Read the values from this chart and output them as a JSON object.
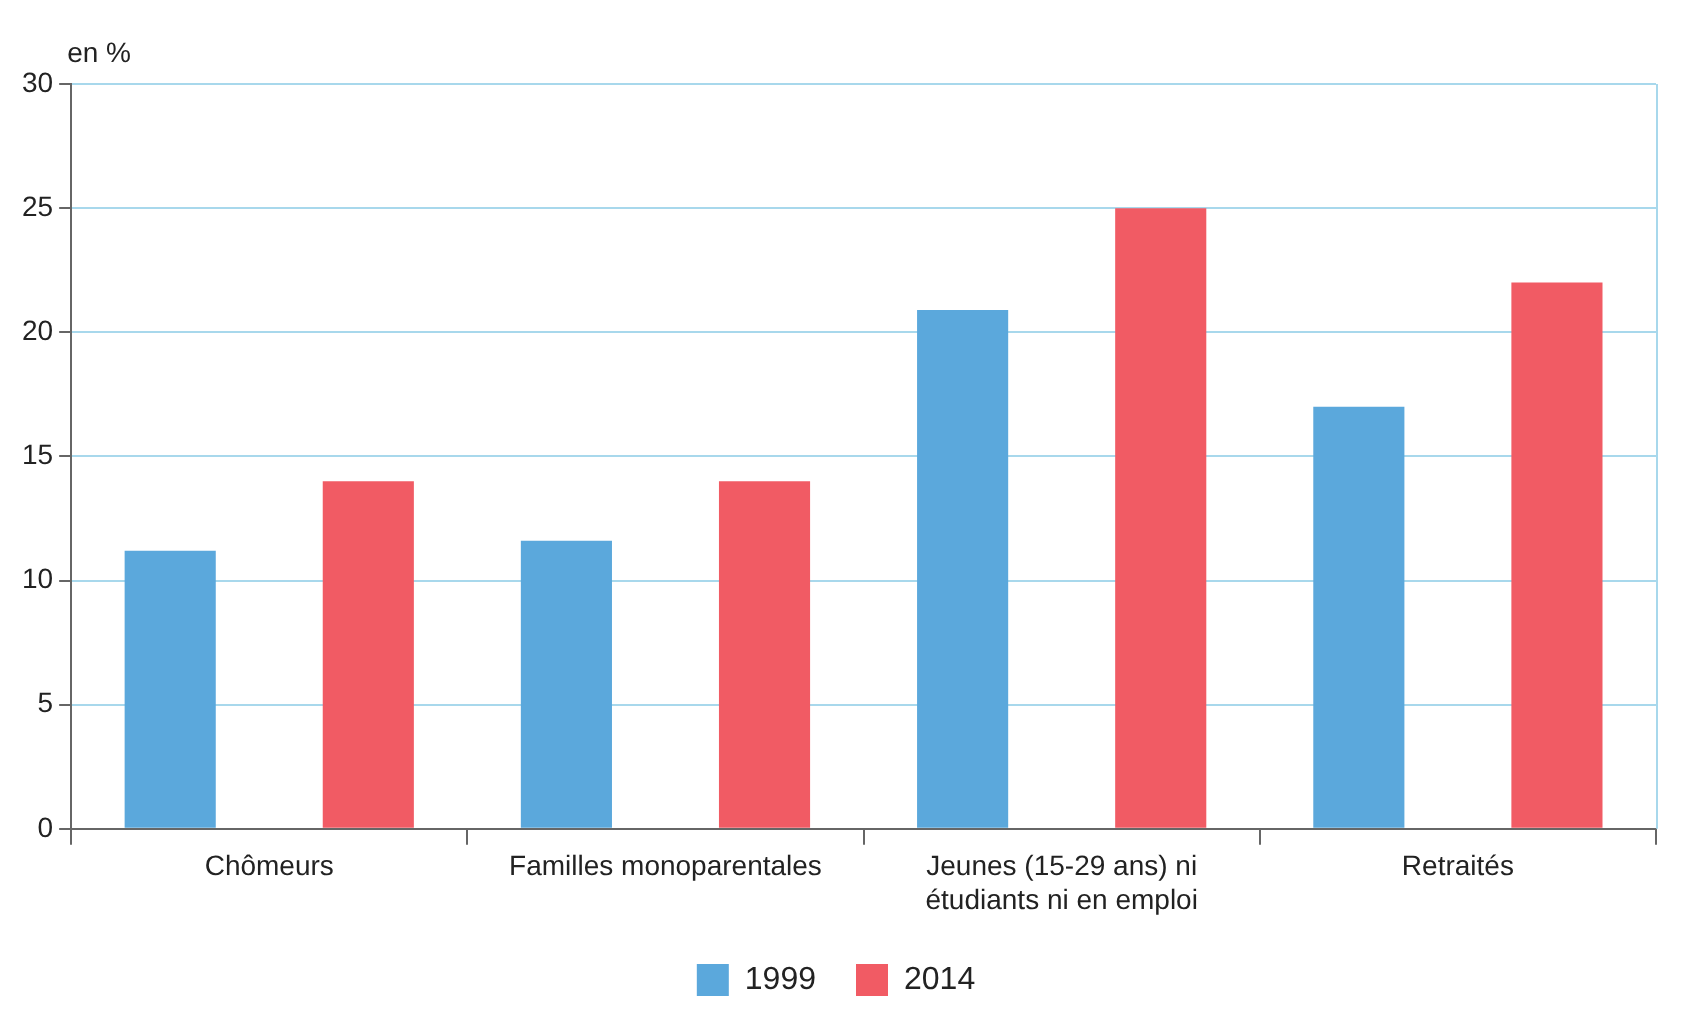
{
  "chart_data": {
    "type": "bar",
    "ylabel": "en %",
    "categories": [
      "Chômeurs",
      "Familles monoparentales",
      "Jeunes (15-29 ans) ni étudiants ni en emploi",
      "Retraités"
    ],
    "series": [
      {
        "name": "1999",
        "color": "#5ba8dc",
        "values": [
          11.2,
          11.6,
          20.9,
          17.0
        ]
      },
      {
        "name": "2014",
        "color": "#f15b64",
        "values": [
          14,
          14,
          25,
          22
        ]
      }
    ],
    "ylim": [
      0,
      30
    ],
    "yticks": [
      0,
      5,
      10,
      15,
      20,
      25,
      30
    ],
    "grid": "y",
    "legend": "bottom"
  }
}
